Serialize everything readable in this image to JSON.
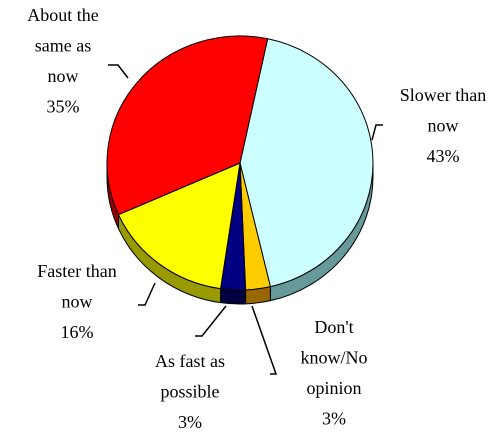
{
  "chart_data": {
    "type": "pie",
    "categories": [
      "Slower than now",
      "Don't know/No opinion",
      "As fast as possible",
      "Faster than now",
      "About the same as now"
    ],
    "values": [
      43,
      3,
      3,
      16,
      35
    ],
    "value_labels": [
      "43%",
      "3%",
      "3%",
      "16%",
      "35%"
    ],
    "colors": [
      "#ccffff",
      "#ffcc00",
      "#000080",
      "#ffff00",
      "#ff0000"
    ]
  }
}
